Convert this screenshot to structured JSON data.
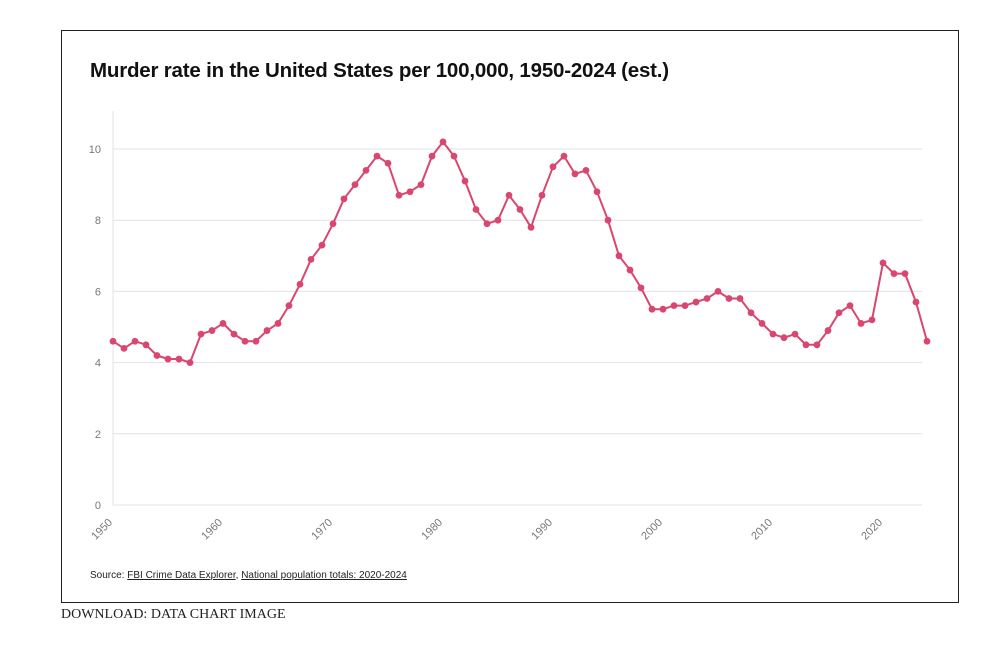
{
  "title": "Murder rate in the United States per 100,000, 1950-2024 (est.)",
  "source": {
    "prefix": "Source: ",
    "link1": "FBI Crime Data Explorer",
    "separator": ", ",
    "link2": "National population totals: 2020-2024"
  },
  "download": {
    "prefix": "DOWNLOAD: ",
    "data_label": "DATA",
    "chart_image_label": "CHART IMAGE"
  },
  "colors": {
    "line": "#d9466f",
    "grid": "#e3e3e3",
    "axis_text": "#777777"
  },
  "chart_data": {
    "type": "line",
    "title": "Murder rate in the United States per 100,000, 1950-2024 (est.)",
    "xlabel": "",
    "ylabel": "",
    "xlim": [
      1950,
      2024
    ],
    "ylim": [
      0,
      11
    ],
    "x_ticks": [
      "1950",
      "1960",
      "1970",
      "1980",
      "1990",
      "2000",
      "2010",
      "2020"
    ],
    "y_ticks": [
      "0",
      "2",
      "4",
      "6",
      "8",
      "10"
    ],
    "grid": true,
    "legend": "none",
    "series": [
      {
        "x": [
          1950,
          1951,
          1952,
          1953,
          1954,
          1955,
          1956,
          1957,
          1958,
          1959,
          1960,
          1961,
          1962,
          1963,
          1964,
          1965,
          1966,
          1967,
          1968,
          1969,
          1970,
          1971,
          1972,
          1973,
          1974,
          1975,
          1976,
          1977,
          1978,
          1979,
          1980,
          1981,
          1982,
          1983,
          1984,
          1985,
          1986,
          1987,
          1988,
          1989,
          1990,
          1991,
          1992,
          1993,
          1994,
          1995,
          1996,
          1997,
          1998,
          1999,
          2000,
          2001,
          2002,
          2003,
          2004,
          2005,
          2006,
          2007,
          2008,
          2009,
          2010,
          2011,
          2012,
          2013,
          2014,
          2015,
          2016,
          2017,
          2018,
          2019,
          2020,
          2021,
          2022,
          2023,
          2024
        ],
        "y": [
          4.6,
          4.4,
          4.6,
          4.5,
          4.2,
          4.1,
          4.1,
          4.0,
          4.8,
          4.9,
          5.1,
          4.8,
          4.6,
          4.6,
          4.9,
          5.1,
          5.6,
          6.2,
          6.9,
          7.3,
          7.9,
          8.6,
          9.0,
          9.4,
          9.8,
          9.6,
          8.7,
          8.8,
          9.0,
          9.8,
          10.2,
          9.8,
          9.1,
          8.3,
          7.9,
          8.0,
          8.7,
          8.3,
          7.8,
          8.7,
          9.5,
          9.8,
          9.3,
          9.4,
          8.8,
          8.0,
          7.0,
          6.6,
          6.1,
          5.5,
          5.5,
          5.6,
          5.6,
          5.7,
          5.8,
          6.0,
          5.8,
          5.8,
          5.4,
          5.1,
          4.8,
          4.7,
          4.8,
          4.5,
          4.5,
          4.9,
          5.4,
          5.6,
          5.1,
          5.2,
          6.8,
          6.5,
          6.5,
          5.7,
          4.6
        ]
      }
    ]
  }
}
